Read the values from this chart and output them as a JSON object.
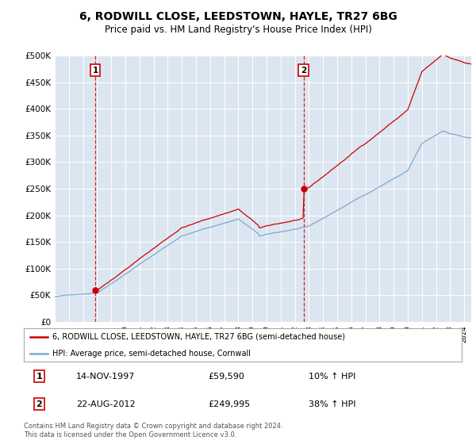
{
  "title": "6, RODWILL CLOSE, LEEDSTOWN, HAYLE, TR27 6BG",
  "subtitle": "Price paid vs. HM Land Registry's House Price Index (HPI)",
  "property_label": "6, RODWILL CLOSE, LEEDSTOWN, HAYLE, TR27 6BG (semi-detached house)",
  "hpi_label": "HPI: Average price, semi-detached house, Cornwall",
  "property_color": "#cc0000",
  "hpi_color": "#7aaad0",
  "purchase1_date_x": 1997.875,
  "purchase1_price": 59590,
  "purchase2_date_x": 2012.625,
  "purchase2_price": 249995,
  "annotation1_date": "14-NOV-1997",
  "annotation1_price": "£59,590",
  "annotation1_hpi": "10% ↑ HPI",
  "annotation2_date": "22-AUG-2012",
  "annotation2_price": "£249,995",
  "annotation2_hpi": "38% ↑ HPI",
  "footer": "Contains HM Land Registry data © Crown copyright and database right 2024.\nThis data is licensed under the Open Government Licence v3.0.",
  "ylim": [
    0,
    500000
  ],
  "yticks": [
    0,
    50000,
    100000,
    150000,
    200000,
    250000,
    300000,
    350000,
    400000,
    450000,
    500000
  ],
  "xmin": 1995.0,
  "xmax": 2024.5,
  "plot_bg_color": "#dce6f1"
}
